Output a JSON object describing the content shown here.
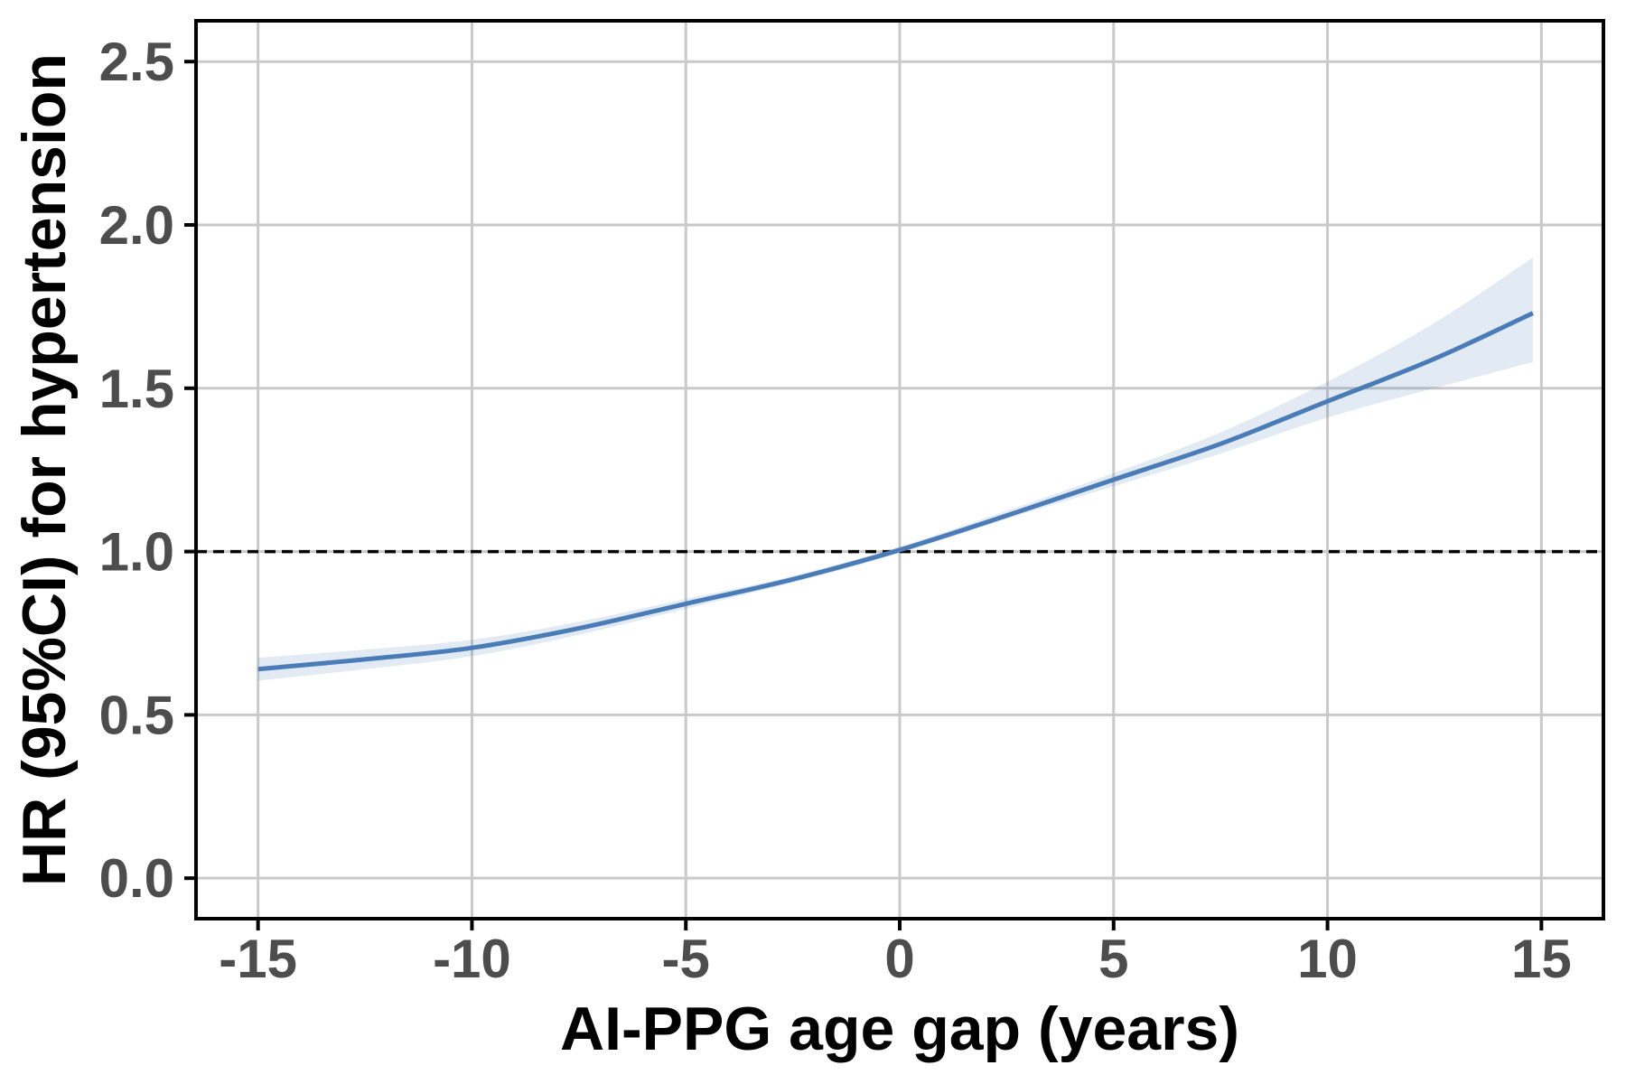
{
  "chart_data": {
    "type": "line",
    "title": "",
    "xlabel": "AI-PPG age gap (years)",
    "ylabel": "HR (95%CI) for hypertension",
    "x_ticks": [
      -15,
      -10,
      -5,
      0,
      5,
      10,
      15
    ],
    "x_tick_labels": [
      "-15",
      "-10",
      "-5",
      "0",
      "5",
      "10",
      "15"
    ],
    "y_ticks": [
      0.0,
      0.5,
      1.0,
      1.5,
      2.0,
      2.5
    ],
    "y_tick_labels": [
      "0.0",
      "0.5",
      "1.0",
      "1.5",
      "2.0",
      "2.5"
    ],
    "x_domain": [
      -16.45,
      16.45
    ],
    "y_domain": [
      -0.124,
      2.625
    ],
    "grid": true,
    "legend_position": "none",
    "reference_line": {
      "y": 1.0,
      "style": "dashed"
    },
    "series": [
      {
        "name": "HR with 95% CI ribbon",
        "points": [
          {
            "x": -15.0,
            "hr": 0.64,
            "lo": 0.605,
            "hi": 0.675
          },
          {
            "x": -12.5,
            "hr": 0.67,
            "lo": 0.64,
            "hi": 0.7
          },
          {
            "x": -10.0,
            "hr": 0.705,
            "lo": 0.68,
            "hi": 0.73
          },
          {
            "x": -7.5,
            "hr": 0.765,
            "lo": 0.745,
            "hi": 0.785
          },
          {
            "x": -5.0,
            "hr": 0.84,
            "lo": 0.825,
            "hi": 0.855
          },
          {
            "x": -2.5,
            "hr": 0.915,
            "lo": 0.905,
            "hi": 0.925
          },
          {
            "x": 0.0,
            "hr": 1.005,
            "lo": 0.995,
            "hi": 1.015
          },
          {
            "x": 2.5,
            "hr": 1.11,
            "lo": 1.1,
            "hi": 1.125
          },
          {
            "x": 5.0,
            "hr": 1.22,
            "lo": 1.2,
            "hi": 1.24
          },
          {
            "x": 7.5,
            "hr": 1.33,
            "lo": 1.3,
            "hi": 1.365
          },
          {
            "x": 10.0,
            "hr": 1.46,
            "lo": 1.41,
            "hi": 1.52
          },
          {
            "x": 12.5,
            "hr": 1.59,
            "lo": 1.5,
            "hi": 1.7
          },
          {
            "x": 14.8,
            "hr": 1.73,
            "lo": 1.58,
            "hi": 1.9
          }
        ]
      }
    ],
    "colors": {
      "line": "#4a7cb8",
      "ribbon": "#4a7cb8",
      "ribbon_opacity": 0.16,
      "grid": "#c9c9c9",
      "reference": "#000000",
      "border": "#000000",
      "tick_text": "#4d4d4d",
      "title_text": "#000000",
      "background": "#ffffff"
    }
  }
}
